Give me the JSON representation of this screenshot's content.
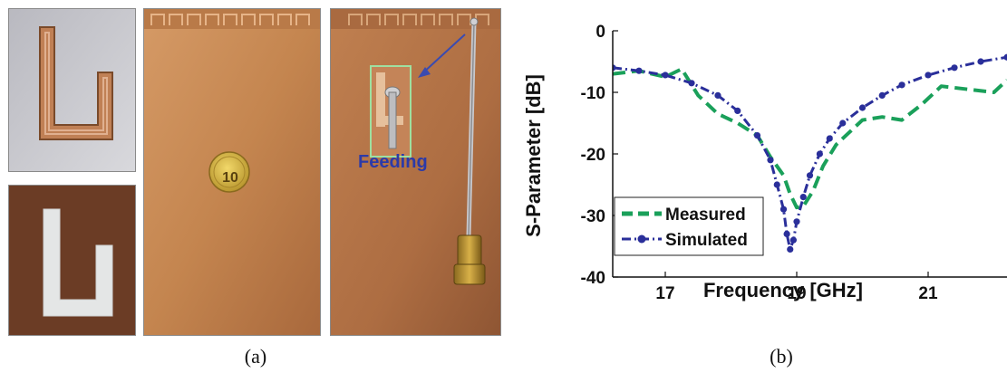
{
  "figure_a": {
    "caption": "(a)",
    "photos": [
      {
        "name": "copper-u-element-photo"
      },
      {
        "name": "u-slot-cutout-photo"
      },
      {
        "name": "antenna-board-with-coin-photo"
      },
      {
        "name": "antenna-board-with-feed-photo"
      }
    ],
    "coin_label": "10",
    "feeding_label": "Feeding",
    "colors": {
      "copper": "#c98a55",
      "copper_dark": "#8a5530",
      "highlight_box": "#9fe0a0",
      "arrow": "#3a4bb0"
    }
  },
  "figure_b": {
    "caption": "(b)"
  },
  "chart_data": {
    "type": "line",
    "title": "",
    "xlabel": "Frequency [GHz]",
    "ylabel": "S-Parameter [dB]",
    "xlim": [
      16.2,
      22.2
    ],
    "ylim": [
      -40,
      0
    ],
    "xticks": [
      17,
      19,
      21
    ],
    "yticks": [
      0,
      -10,
      -20,
      -30,
      -40
    ],
    "grid": false,
    "legend_position": "bottom-left",
    "series": [
      {
        "name": "Measured",
        "color": "#1aa05a",
        "style": "dashed",
        "x": [
          16.2,
          16.6,
          17.0,
          17.25,
          17.5,
          17.8,
          18.1,
          18.4,
          18.6,
          18.8,
          18.9,
          19.0,
          19.1,
          19.25,
          19.4,
          19.6,
          19.8,
          20.0,
          20.3,
          20.6,
          20.9,
          21.2,
          21.6,
          22.0,
          22.2
        ],
        "y": [
          -7,
          -6.5,
          -7.5,
          -6.2,
          -10.5,
          -13.5,
          -15,
          -17,
          -20.5,
          -23.5,
          -26.5,
          -28.7,
          -28.5,
          -26,
          -22,
          -18.5,
          -16.5,
          -14.5,
          -14,
          -14.5,
          -12,
          -9,
          -9.5,
          -10,
          -8
        ]
      },
      {
        "name": "Simulated",
        "color": "#2a2f9a",
        "style": "dash-dot-circle",
        "x": [
          16.2,
          16.6,
          17.0,
          17.4,
          17.8,
          18.1,
          18.4,
          18.6,
          18.7,
          18.8,
          18.85,
          18.9,
          18.95,
          19.0,
          19.1,
          19.2,
          19.35,
          19.5,
          19.7,
          20.0,
          20.3,
          20.6,
          21.0,
          21.4,
          21.8,
          22.2
        ],
        "y": [
          -6,
          -6.5,
          -7.2,
          -8.5,
          -10.5,
          -13,
          -17,
          -21,
          -25,
          -29,
          -33,
          -35.5,
          -34,
          -31,
          -27,
          -23.5,
          -20,
          -17.5,
          -15,
          -12.5,
          -10.5,
          -8.8,
          -7.2,
          -6,
          -5,
          -4.3
        ]
      }
    ]
  }
}
